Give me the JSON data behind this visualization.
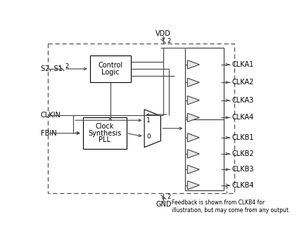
{
  "bg_color": "#ffffff",
  "box_color": "#ffffff",
  "box_edge": "#000000",
  "line_color": "#444444",
  "text_color": "#000000",
  "outputs_a": [
    "CLKA1",
    "CLKA2",
    "CLKA3",
    "CLKA4"
  ],
  "outputs_b": [
    "CLKB1",
    "CLKB2",
    "CLKB3",
    "CLKB4"
  ],
  "vdd_label": "VDD",
  "gnd_label": "GND",
  "feedback_note": "Feedback is shown from CLKB4 for\nillustration, but may come from any output.",
  "s2s1_label": "S2, S1",
  "clkin_label": "CLKIN",
  "fbin_label": "FBIN",
  "control_label": [
    "Control",
    "Logic"
  ],
  "pll_label": [
    "Clock",
    "Synthesis",
    "PLL"
  ],
  "mux_1": "1",
  "mux_0": "0"
}
